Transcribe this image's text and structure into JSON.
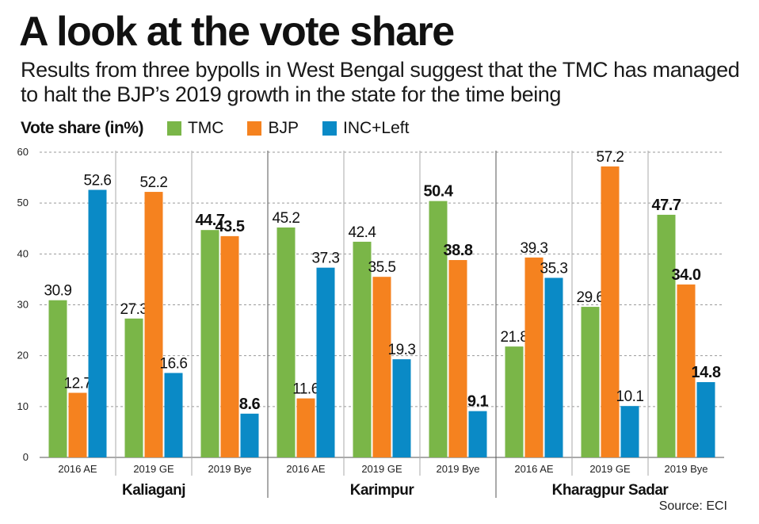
{
  "title": "A look at the vote share",
  "subtitle": "Results from three bypolls in West Bengal suggest that the TMC has managed to halt the BJP’s 2019 growth in the state for the time being",
  "legend": {
    "title": "Vote share (in%)",
    "items": [
      {
        "label": "TMC",
        "color": "#7ab648"
      },
      {
        "label": "BJP",
        "color": "#f5821f"
      },
      {
        "label": "INC+Left",
        "color": "#0a8ac6"
      }
    ]
  },
  "source": "Source: ECI",
  "chart_data": {
    "type": "bar",
    "ylim": [
      0,
      60
    ],
    "yticks": [
      "0",
      "10",
      "20",
      "30",
      "40",
      "50",
      "60"
    ],
    "grid": true,
    "groups": [
      {
        "name": "Kaliaganj",
        "elections": [
          {
            "label": "2016 AE",
            "values": [
              30.9,
              12.7,
              52.6
            ],
            "labels": [
              "30.9",
              "12.7",
              "52.6"
            ],
            "bold": [
              false,
              false,
              false
            ]
          },
          {
            "label": "2019 GE",
            "values": [
              27.3,
              52.2,
              16.6
            ],
            "labels": [
              "27.3",
              "52.2",
              "16.6"
            ],
            "bold": [
              false,
              false,
              false
            ]
          },
          {
            "label": "2019 Bye",
            "values": [
              44.7,
              43.5,
              8.6
            ],
            "labels": [
              "44.7",
              "43.5",
              "8.6"
            ],
            "bold": [
              true,
              true,
              true
            ]
          }
        ]
      },
      {
        "name": "Karimpur",
        "elections": [
          {
            "label": "2016 AE",
            "values": [
              45.2,
              11.6,
              37.3
            ],
            "labels": [
              "45.2",
              "11.6",
              "37.3"
            ],
            "bold": [
              false,
              false,
              false
            ]
          },
          {
            "label": "2019 GE",
            "values": [
              42.4,
              35.5,
              19.3
            ],
            "labels": [
              "42.4",
              "35.5",
              "19.3"
            ],
            "bold": [
              false,
              false,
              false
            ]
          },
          {
            "label": "2019 Bye",
            "values": [
              50.4,
              38.8,
              9.1
            ],
            "labels": [
              "50.4",
              "38.8",
              "9.1"
            ],
            "bold": [
              true,
              true,
              true
            ]
          }
        ]
      },
      {
        "name": "Kharagpur Sadar",
        "elections": [
          {
            "label": "2016 AE",
            "values": [
              21.8,
              39.3,
              35.3
            ],
            "labels": [
              "21.8",
              "39.3",
              "35.3"
            ],
            "bold": [
              false,
              false,
              false
            ]
          },
          {
            "label": "2019 GE",
            "values": [
              29.6,
              57.2,
              10.1
            ],
            "labels": [
              "29.6",
              "57.2",
              "10.1"
            ],
            "bold": [
              false,
              false,
              false
            ]
          },
          {
            "label": "2019 Bye",
            "values": [
              47.7,
              34.0,
              14.8
            ],
            "labels": [
              "47.7",
              "34.0",
              "14.8"
            ],
            "bold": [
              true,
              true,
              true
            ]
          }
        ]
      }
    ]
  }
}
